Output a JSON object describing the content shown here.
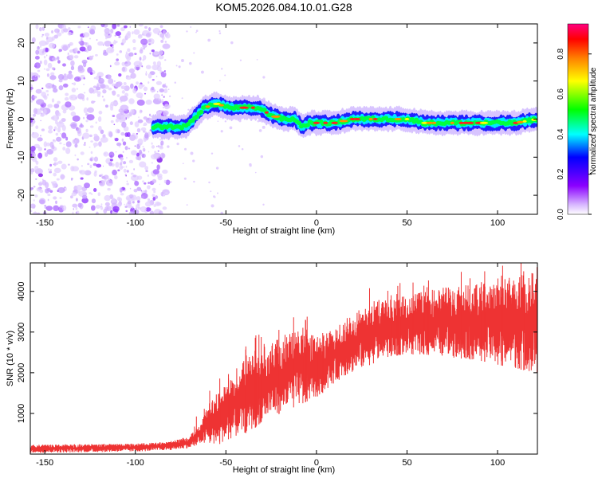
{
  "chart_data": [
    {
      "type": "heatmap",
      "title": "KOM5.2026.084.10.01.G28",
      "xlabel": "Height of straight line (km)",
      "ylabel": "Frequency (Hz)",
      "xlim": [
        -158,
        122
      ],
      "ylim": [
        -25,
        25
      ],
      "xticks": [
        -150,
        -100,
        -50,
        0,
        50,
        100
      ],
      "yticks": [
        -20,
        -10,
        0,
        10,
        20
      ],
      "colorbar": {
        "label": "Normalized spectral amplitude",
        "range": [
          0,
          0.95
        ],
        "ticks": [
          "0.0",
          "0.2",
          "0.4",
          "0.6",
          "0.8"
        ],
        "colors": [
          "#ffffff",
          "#8b00ff",
          "#0000ff",
          "#00ffff",
          "#00ff00",
          "#ffff00",
          "#ff8000",
          "#ff0000",
          "#ff0080"
        ]
      },
      "ridge": {
        "x": [
          -90,
          -80,
          -72,
          -68,
          -62,
          -55,
          -48,
          -40,
          -32,
          -25,
          -18,
          -12,
          -8,
          -4,
          0,
          10,
          20,
          30,
          40,
          50,
          60,
          70,
          80,
          90,
          100,
          110,
          122
        ],
        "y": [
          -2,
          -2,
          -2,
          0,
          3,
          4,
          3,
          3,
          3,
          1,
          0,
          0,
          -2,
          -1,
          -1,
          -1,
          0,
          0,
          0,
          0,
          -1,
          -1,
          -1,
          -1,
          -1,
          -1,
          0
        ]
      },
      "noise_region": [
        -158,
        -88
      ]
    },
    {
      "type": "line",
      "title": "",
      "xlabel": "Height of straight line (km)",
      "ylabel": "SNR (10 * v/v)",
      "xlim": [
        -158,
        122
      ],
      "ylim": [
        0,
        4700
      ],
      "xticks": [
        -150,
        -100,
        -50,
        0,
        50,
        100
      ],
      "yticks": [
        1000,
        2000,
        3000,
        4000
      ],
      "color": "#ee3333",
      "series": [
        {
          "x": [
            -158,
            -140,
            -120,
            -100,
            -90,
            -80,
            -70,
            -65,
            -60,
            -55,
            -50,
            -45,
            -40,
            -35,
            -30,
            -25,
            -20,
            -15,
            -10,
            -5,
            0,
            5,
            10,
            15,
            20,
            25,
            30,
            35,
            40,
            50,
            60,
            70,
            80,
            90,
            100,
            110,
            122
          ],
          "low": [
            30,
            40,
            50,
            60,
            80,
            100,
            150,
            250,
            300,
            200,
            350,
            400,
            500,
            600,
            800,
            900,
            1000,
            1100,
            1200,
            1300,
            1400,
            1550,
            1750,
            1900,
            2000,
            2100,
            2200,
            2300,
            2400,
            2450,
            2450,
            2400,
            2350,
            2300,
            2200,
            2100,
            2000
          ],
          "high": [
            230,
            240,
            250,
            260,
            280,
            320,
            450,
            700,
            1200,
            1500,
            1800,
            2100,
            2400,
            2600,
            2700,
            2800,
            2900,
            3000,
            3050,
            3100,
            2800,
            2950,
            3100,
            3300,
            3500,
            3650,
            3750,
            3800,
            3850,
            3900,
            4000,
            4100,
            4150,
            4200,
            4250,
            4400,
            4500
          ]
        }
      ]
    }
  ]
}
